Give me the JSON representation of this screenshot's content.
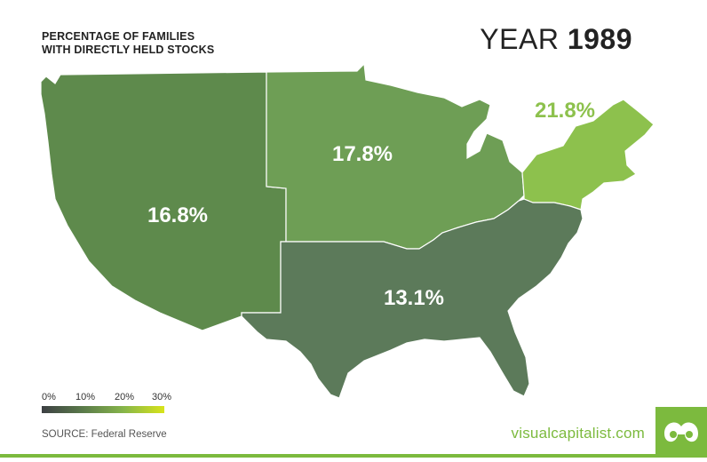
{
  "header": {
    "title_line1": "PERCENTAGE OF FAMILIES",
    "title_line2": "WITH DIRECTLY HELD STOCKS",
    "year_label": "YEAR",
    "year_value": "1989"
  },
  "regions": [
    {
      "id": "west",
      "label": "16.8%",
      "value": 16.8,
      "color": "#5e8a4c"
    },
    {
      "id": "midwest",
      "label": "17.8%",
      "value": 17.8,
      "color": "#6e9e55"
    },
    {
      "id": "northeast",
      "label": "21.8%",
      "value": 21.8,
      "color": "#8dc14d"
    },
    {
      "id": "south",
      "label": "13.1%",
      "value": 13.1,
      "color": "#5c7a5a"
    }
  ],
  "legend": {
    "ticks": [
      "0%",
      "10%",
      "20%",
      "30%"
    ]
  },
  "footer": {
    "source": "SOURCE: Federal Reserve",
    "brand": "visualcapitalist.com"
  },
  "colors": {
    "brand_green": "#7cba3e"
  }
}
